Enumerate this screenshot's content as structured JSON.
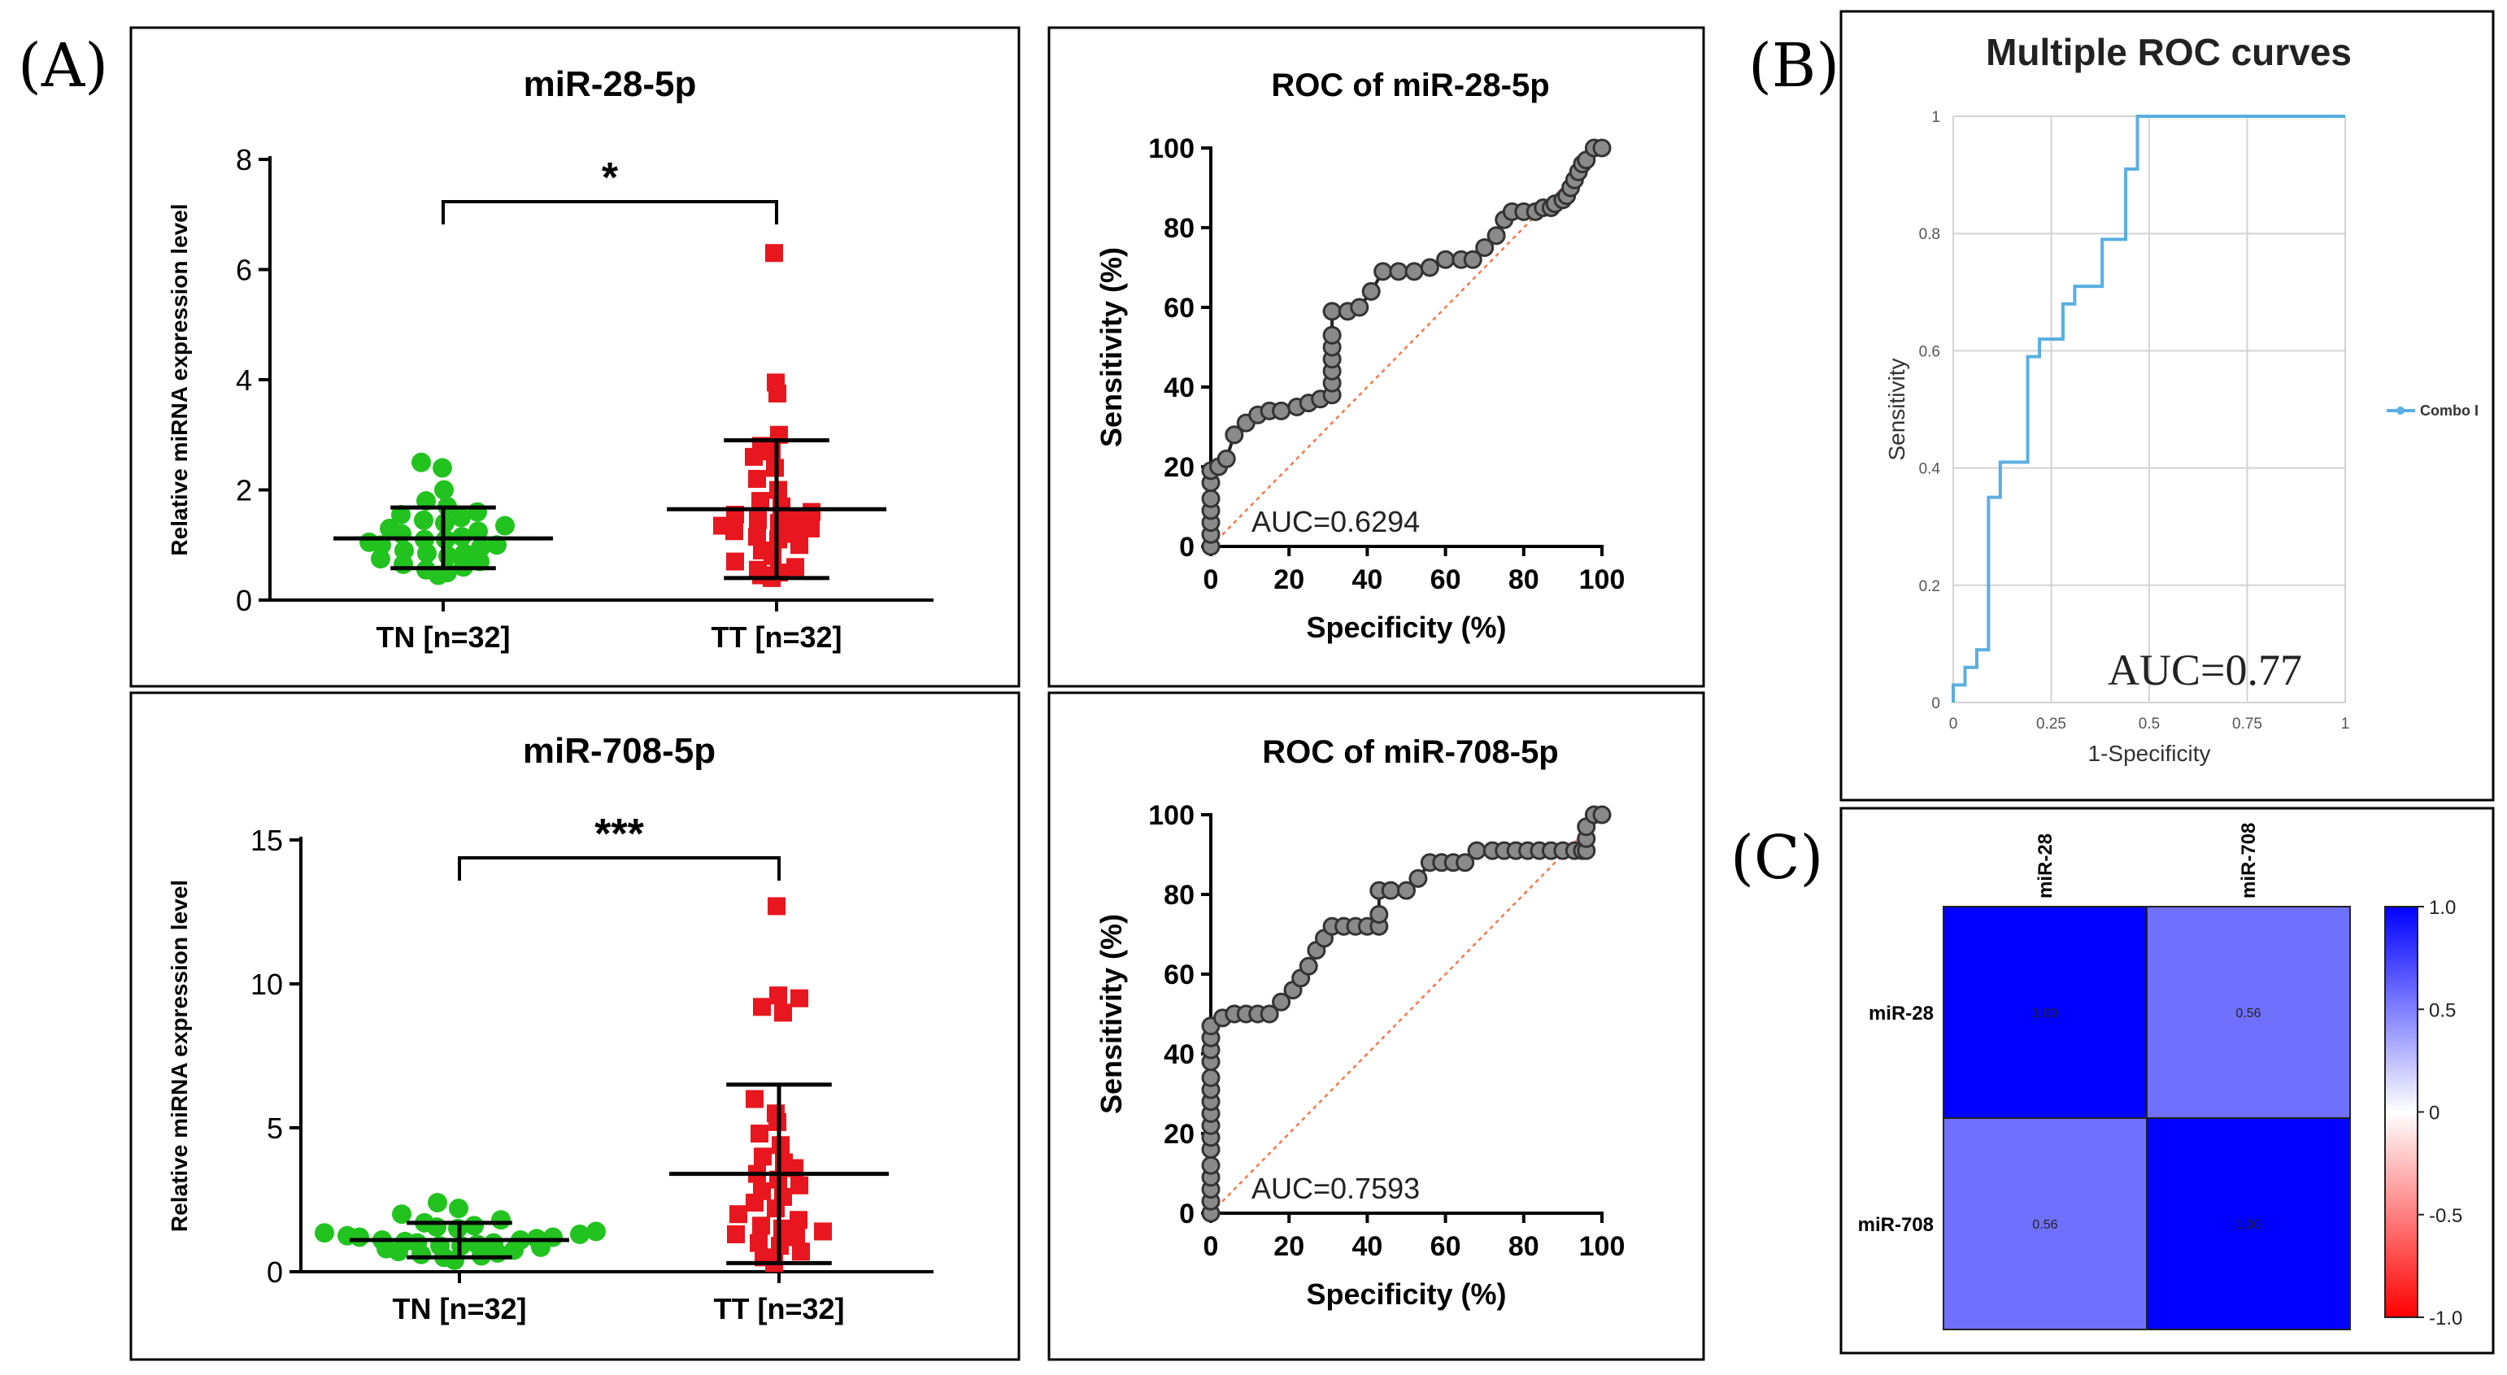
{
  "panel_labels": {
    "A": "(A)",
    "B": "(B)",
    "C": "(C)"
  },
  "chart_data": [
    {
      "id": "scatter_mir28",
      "type": "scatter",
      "title": "miR-28-5p",
      "ylabel": "Relative miRNA expression level",
      "categories": [
        "TN [n=32]",
        "TT [n=32]"
      ],
      "ylim": [
        0,
        8
      ],
      "yticks": [
        "0",
        "2",
        "4",
        "6",
        "8"
      ],
      "significance": "*",
      "colors": {
        "TN": "#22c31f",
        "TT": "#e8161e"
      },
      "groups": [
        {
          "name": "TN [n=32]",
          "mean": 1.12,
          "sd_low": 0.58,
          "sd_high": 1.68,
          "values": [
            0.45,
            0.5,
            0.55,
            0.6,
            0.65,
            0.7,
            0.75,
            0.8,
            0.85,
            0.85,
            0.9,
            0.95,
            1.0,
            1.0,
            1.05,
            1.1,
            1.1,
            1.15,
            1.2,
            1.25,
            1.3,
            1.35,
            1.4,
            1.45,
            1.5,
            1.55,
            1.6,
            1.7,
            1.8,
            2.0,
            2.4,
            2.5
          ]
        },
        {
          "name": "TT [n=32]",
          "mean": 1.65,
          "sd_low": 0.4,
          "sd_high": 2.9,
          "values": [
            0.4,
            0.45,
            0.5,
            0.55,
            0.6,
            0.7,
            0.8,
            0.9,
            1.0,
            1.1,
            1.15,
            1.2,
            1.25,
            1.3,
            1.35,
            1.4,
            1.45,
            1.5,
            1.55,
            1.6,
            1.7,
            1.8,
            2.0,
            2.2,
            2.4,
            2.6,
            2.7,
            2.8,
            3.0,
            3.75,
            3.95,
            6.3
          ]
        }
      ]
    },
    {
      "id": "roc_mir28",
      "type": "line",
      "title": "ROC of miR-28-5p",
      "xlabel": "Specificity (%)",
      "ylabel": "Sensitivity (%)",
      "xlim": [
        0,
        100
      ],
      "ylim": [
        0,
        100
      ],
      "xticks": [
        "0",
        "20",
        "40",
        "60",
        "80",
        "100"
      ],
      "yticks": [
        "0",
        "20",
        "40",
        "60",
        "80",
        "100"
      ],
      "annotation": "AUC=0.6294",
      "x": [
        0,
        0,
        0,
        0,
        0,
        0,
        0,
        2,
        4,
        6,
        9,
        12,
        15,
        18,
        22,
        25,
        28,
        31,
        31,
        31,
        31,
        31,
        31,
        31,
        35,
        38,
        41,
        44,
        48,
        52,
        56,
        60,
        64,
        67,
        70,
        73,
        75,
        77,
        80,
        83,
        85,
        87,
        88,
        90,
        91,
        92,
        93,
        94,
        95,
        96,
        98,
        100
      ],
      "y": [
        0,
        3,
        6,
        9,
        12,
        16,
        19,
        20,
        22,
        28,
        31,
        33,
        34,
        34,
        35,
        36,
        37,
        38,
        41,
        44,
        47,
        50,
        53,
        59,
        59,
        60,
        64,
        69,
        69,
        69,
        70,
        72,
        72,
        72,
        75,
        78,
        82,
        84,
        84,
        84,
        85,
        85,
        86,
        87,
        88,
        90,
        92,
        94,
        96,
        97,
        100,
        100
      ]
    },
    {
      "id": "scatter_mir708",
      "type": "scatter",
      "title": "miR-708-5p",
      "ylabel": "Relative miRNA expression level",
      "categories": [
        "TN [n=32]",
        "TT [n=32]"
      ],
      "ylim": [
        0,
        15
      ],
      "yticks": [
        "0",
        "5",
        "10",
        "15"
      ],
      "significance": "***",
      "colors": {
        "TN": "#22c31f",
        "TT": "#e8161e"
      },
      "groups": [
        {
          "name": "TN [n=32]",
          "mean": 1.1,
          "sd_low": 0.5,
          "sd_high": 1.7,
          "values": [
            0.4,
            0.5,
            0.55,
            0.6,
            0.65,
            0.7,
            0.75,
            0.8,
            0.85,
            0.9,
            0.9,
            0.95,
            1.0,
            1.0,
            1.05,
            1.1,
            1.1,
            1.15,
            1.2,
            1.2,
            1.25,
            1.3,
            1.35,
            1.4,
            1.5,
            1.55,
            1.6,
            1.7,
            1.8,
            2.0,
            2.2,
            2.4
          ]
        },
        {
          "name": "TT [n=32]",
          "mean": 3.4,
          "sd_low": 0.3,
          "sd_high": 6.5,
          "values": [
            0.3,
            0.5,
            0.7,
            0.9,
            1.0,
            1.2,
            1.3,
            1.4,
            1.5,
            1.6,
            1.8,
            2.0,
            2.2,
            2.4,
            2.6,
            2.8,
            3.0,
            3.2,
            3.4,
            3.6,
            3.8,
            4.0,
            4.4,
            4.8,
            5.2,
            5.5,
            6.0,
            9.0,
            9.2,
            9.5,
            9.6,
            12.7
          ]
        }
      ]
    },
    {
      "id": "roc_mir708",
      "type": "line",
      "title": "ROC of miR-708-5p",
      "xlabel": "Specificity (%)",
      "ylabel": "Sensitivity (%)",
      "xlim": [
        0,
        100
      ],
      "ylim": [
        0,
        100
      ],
      "xticks": [
        "0",
        "20",
        "40",
        "60",
        "80",
        "100"
      ],
      "yticks": [
        "0",
        "20",
        "40",
        "60",
        "80",
        "100"
      ],
      "annotation": "AUC=0.7593",
      "x": [
        0,
        0,
        0,
        0,
        0,
        0,
        0,
        0,
        0,
        0,
        0,
        0,
        0,
        0,
        0,
        0,
        3,
        6,
        9,
        12,
        15,
        18,
        21,
        23,
        25,
        27,
        29,
        31,
        34,
        37,
        40,
        43,
        43,
        43,
        46,
        50,
        53,
        56,
        59,
        62,
        65,
        68,
        72,
        75,
        78,
        81,
        84,
        87,
        90,
        93,
        95,
        96,
        96,
        96,
        98,
        100
      ],
      "y": [
        0,
        3,
        6,
        9,
        12,
        16,
        19,
        22,
        25,
        28,
        31,
        34,
        38,
        41,
        44,
        47,
        49,
        50,
        50,
        50,
        50,
        53,
        56,
        59,
        62,
        66,
        69,
        72,
        72,
        72,
        72,
        72,
        75,
        81,
        81,
        81,
        84,
        88,
        88,
        88,
        88,
        91,
        91,
        91,
        91,
        91,
        91,
        91,
        91,
        91,
        91,
        91,
        94,
        97,
        100,
        100
      ]
    },
    {
      "id": "roc_combo",
      "type": "line",
      "title": "Multiple ROC curves",
      "xlabel": "1-Specificity",
      "ylabel": "Sensitivity",
      "xlim": [
        0,
        1
      ],
      "ylim": [
        0,
        1
      ],
      "xticks": [
        "0",
        "0.25",
        "0.5",
        "0.75",
        "1"
      ],
      "yticks": [
        "0",
        "0.2",
        "0.4",
        "0.6",
        "0.8",
        "1"
      ],
      "legend": "Combo I",
      "annotation": "AUC=0.77",
      "color": "#5aaee0",
      "x": [
        0,
        0,
        0.03,
        0.03,
        0.06,
        0.06,
        0.09,
        0.09,
        0.09,
        0.12,
        0.12,
        0.16,
        0.19,
        0.19,
        0.22,
        0.22,
        0.25,
        0.28,
        0.28,
        0.31,
        0.31,
        0.34,
        0.38,
        0.38,
        0.44,
        0.44,
        0.47,
        0.47,
        0.5,
        1
      ],
      "y": [
        0,
        0.03,
        0.03,
        0.06,
        0.06,
        0.09,
        0.09,
        0.12,
        0.35,
        0.35,
        0.41,
        0.41,
        0.41,
        0.59,
        0.59,
        0.62,
        0.62,
        0.62,
        0.68,
        0.68,
        0.71,
        0.71,
        0.71,
        0.79,
        0.79,
        0.91,
        0.91,
        1,
        1,
        1
      ]
    },
    {
      "id": "corr_heatmap",
      "type": "heatmap",
      "rows": [
        "miR-28",
        "miR-708"
      ],
      "cols": [
        "miR-28",
        "miR-708"
      ],
      "values": [
        [
          1.0,
          0.56
        ],
        [
          0.56,
          1.0
        ]
      ],
      "labels": [
        [
          "1.00",
          "0.56"
        ],
        [
          "0.56",
          "1.00"
        ]
      ],
      "colorbar_ticks": [
        "1.0",
        "0.5",
        "0",
        "-0.5",
        "-1.0"
      ],
      "colorbar_range": [
        -1,
        1
      ],
      "colors": {
        "high": "#0000ff",
        "mid": "#ffffff",
        "low": "#ff0000"
      }
    }
  ]
}
